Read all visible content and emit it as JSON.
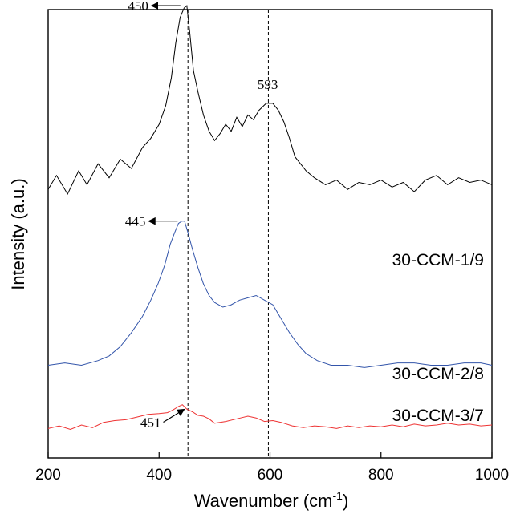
{
  "chart_data": {
    "type": "line",
    "xlabel": "Wavenumber (cm",
    "xlabel_superscript": "-1",
    "xlabel_suffix": ")",
    "ylabel": "Intensity (a.u.)",
    "xlim": [
      200,
      1000
    ],
    "x_ticks": [
      200,
      400,
      600,
      800,
      1000
    ],
    "y_ticks_shown": false,
    "grid": false,
    "reference_lines": [
      452,
      597
    ],
    "series": [
      {
        "name": "30-CCM-1/9",
        "color": "#000000",
        "points": [
          [
            200,
            0.22
          ],
          [
            215,
            0.28
          ],
          [
            235,
            0.2
          ],
          [
            255,
            0.3
          ],
          [
            270,
            0.24
          ],
          [
            290,
            0.33
          ],
          [
            310,
            0.27
          ],
          [
            330,
            0.35
          ],
          [
            350,
            0.31
          ],
          [
            370,
            0.4
          ],
          [
            385,
            0.44
          ],
          [
            400,
            0.5
          ],
          [
            412,
            0.58
          ],
          [
            422,
            0.7
          ],
          [
            430,
            0.85
          ],
          [
            438,
            0.96
          ],
          [
            445,
            1.0
          ],
          [
            450,
            1.01
          ],
          [
            455,
            0.9
          ],
          [
            462,
            0.73
          ],
          [
            470,
            0.64
          ],
          [
            480,
            0.54
          ],
          [
            490,
            0.47
          ],
          [
            500,
            0.43
          ],
          [
            510,
            0.46
          ],
          [
            520,
            0.5
          ],
          [
            530,
            0.47
          ],
          [
            540,
            0.53
          ],
          [
            550,
            0.49
          ],
          [
            560,
            0.54
          ],
          [
            570,
            0.52
          ],
          [
            580,
            0.56
          ],
          [
            593,
            0.59
          ],
          [
            605,
            0.59
          ],
          [
            615,
            0.56
          ],
          [
            625,
            0.51
          ],
          [
            635,
            0.44
          ],
          [
            645,
            0.36
          ],
          [
            655,
            0.33
          ],
          [
            665,
            0.3
          ],
          [
            680,
            0.27
          ],
          [
            700,
            0.24
          ],
          [
            720,
            0.26
          ],
          [
            740,
            0.22
          ],
          [
            760,
            0.25
          ],
          [
            780,
            0.24
          ],
          [
            800,
            0.26
          ],
          [
            820,
            0.23
          ],
          [
            840,
            0.25
          ],
          [
            860,
            0.21
          ],
          [
            880,
            0.26
          ],
          [
            900,
            0.28
          ],
          [
            920,
            0.24
          ],
          [
            940,
            0.27
          ],
          [
            960,
            0.25
          ],
          [
            980,
            0.26
          ],
          [
            1000,
            0.24
          ]
        ]
      },
      {
        "name": "30-CCM-2/8",
        "color": "#3355aa",
        "points": [
          [
            200,
            0.05
          ],
          [
            230,
            0.06
          ],
          [
            260,
            0.05
          ],
          [
            290,
            0.07
          ],
          [
            310,
            0.09
          ],
          [
            330,
            0.13
          ],
          [
            350,
            0.19
          ],
          [
            370,
            0.26
          ],
          [
            385,
            0.33
          ],
          [
            398,
            0.4
          ],
          [
            410,
            0.48
          ],
          [
            420,
            0.57
          ],
          [
            428,
            0.62
          ],
          [
            435,
            0.66
          ],
          [
            441,
            0.67
          ],
          [
            446,
            0.67
          ],
          [
            452,
            0.62
          ],
          [
            460,
            0.55
          ],
          [
            470,
            0.47
          ],
          [
            480,
            0.4
          ],
          [
            490,
            0.35
          ],
          [
            500,
            0.32
          ],
          [
            515,
            0.3
          ],
          [
            530,
            0.31
          ],
          [
            545,
            0.33
          ],
          [
            560,
            0.34
          ],
          [
            575,
            0.35
          ],
          [
            590,
            0.33
          ],
          [
            605,
            0.31
          ],
          [
            620,
            0.25
          ],
          [
            635,
            0.19
          ],
          [
            650,
            0.14
          ],
          [
            665,
            0.1
          ],
          [
            685,
            0.07
          ],
          [
            710,
            0.05
          ],
          [
            740,
            0.05
          ],
          [
            770,
            0.04
          ],
          [
            800,
            0.05
          ],
          [
            830,
            0.06
          ],
          [
            860,
            0.06
          ],
          [
            890,
            0.05
          ],
          [
            920,
            0.05
          ],
          [
            950,
            0.06
          ],
          [
            980,
            0.06
          ],
          [
            1000,
            0.05
          ]
        ]
      },
      {
        "name": "30-CCM-3/7",
        "color": "#ee3333",
        "points": [
          [
            200,
            -0.04
          ],
          [
            220,
            -0.01
          ],
          [
            240,
            -0.05
          ],
          [
            260,
            0.0
          ],
          [
            280,
            -0.03
          ],
          [
            300,
            0.03
          ],
          [
            320,
            0.05
          ],
          [
            340,
            0.06
          ],
          [
            360,
            0.09
          ],
          [
            380,
            0.12
          ],
          [
            400,
            0.13
          ],
          [
            415,
            0.14
          ],
          [
            425,
            0.17
          ],
          [
            435,
            0.21
          ],
          [
            442,
            0.23
          ],
          [
            450,
            0.18
          ],
          [
            460,
            0.15
          ],
          [
            470,
            0.11
          ],
          [
            480,
            0.1
          ],
          [
            490,
            0.07
          ],
          [
            500,
            0.02
          ],
          [
            520,
            0.04
          ],
          [
            540,
            0.07
          ],
          [
            560,
            0.1
          ],
          [
            575,
            0.08
          ],
          [
            590,
            0.04
          ],
          [
            605,
            0.05
          ],
          [
            620,
            0.03
          ],
          [
            640,
            -0.01
          ],
          [
            660,
            -0.03
          ],
          [
            680,
            -0.01
          ],
          [
            700,
            -0.02
          ],
          [
            720,
            -0.04
          ],
          [
            740,
            -0.01
          ],
          [
            760,
            -0.03
          ],
          [
            780,
            -0.01
          ],
          [
            800,
            -0.02
          ],
          [
            820,
            0.0
          ],
          [
            840,
            -0.02
          ],
          [
            860,
            0.01
          ],
          [
            880,
            -0.01
          ],
          [
            900,
            0.0
          ],
          [
            920,
            0.02
          ],
          [
            940,
            0.0
          ],
          [
            960,
            0.01
          ],
          [
            980,
            -0.01
          ],
          [
            1000,
            0.0
          ]
        ]
      }
    ],
    "annotations": [
      {
        "text": "450",
        "x": 450,
        "series": 0,
        "arrow": true
      },
      {
        "text": "445",
        "x": 445,
        "series": 1,
        "arrow": true
      },
      {
        "text": "451",
        "x": 451,
        "series": 2,
        "arrow": true
      },
      {
        "text": "593",
        "x": 593,
        "series": 0,
        "arrow": false
      }
    ]
  }
}
